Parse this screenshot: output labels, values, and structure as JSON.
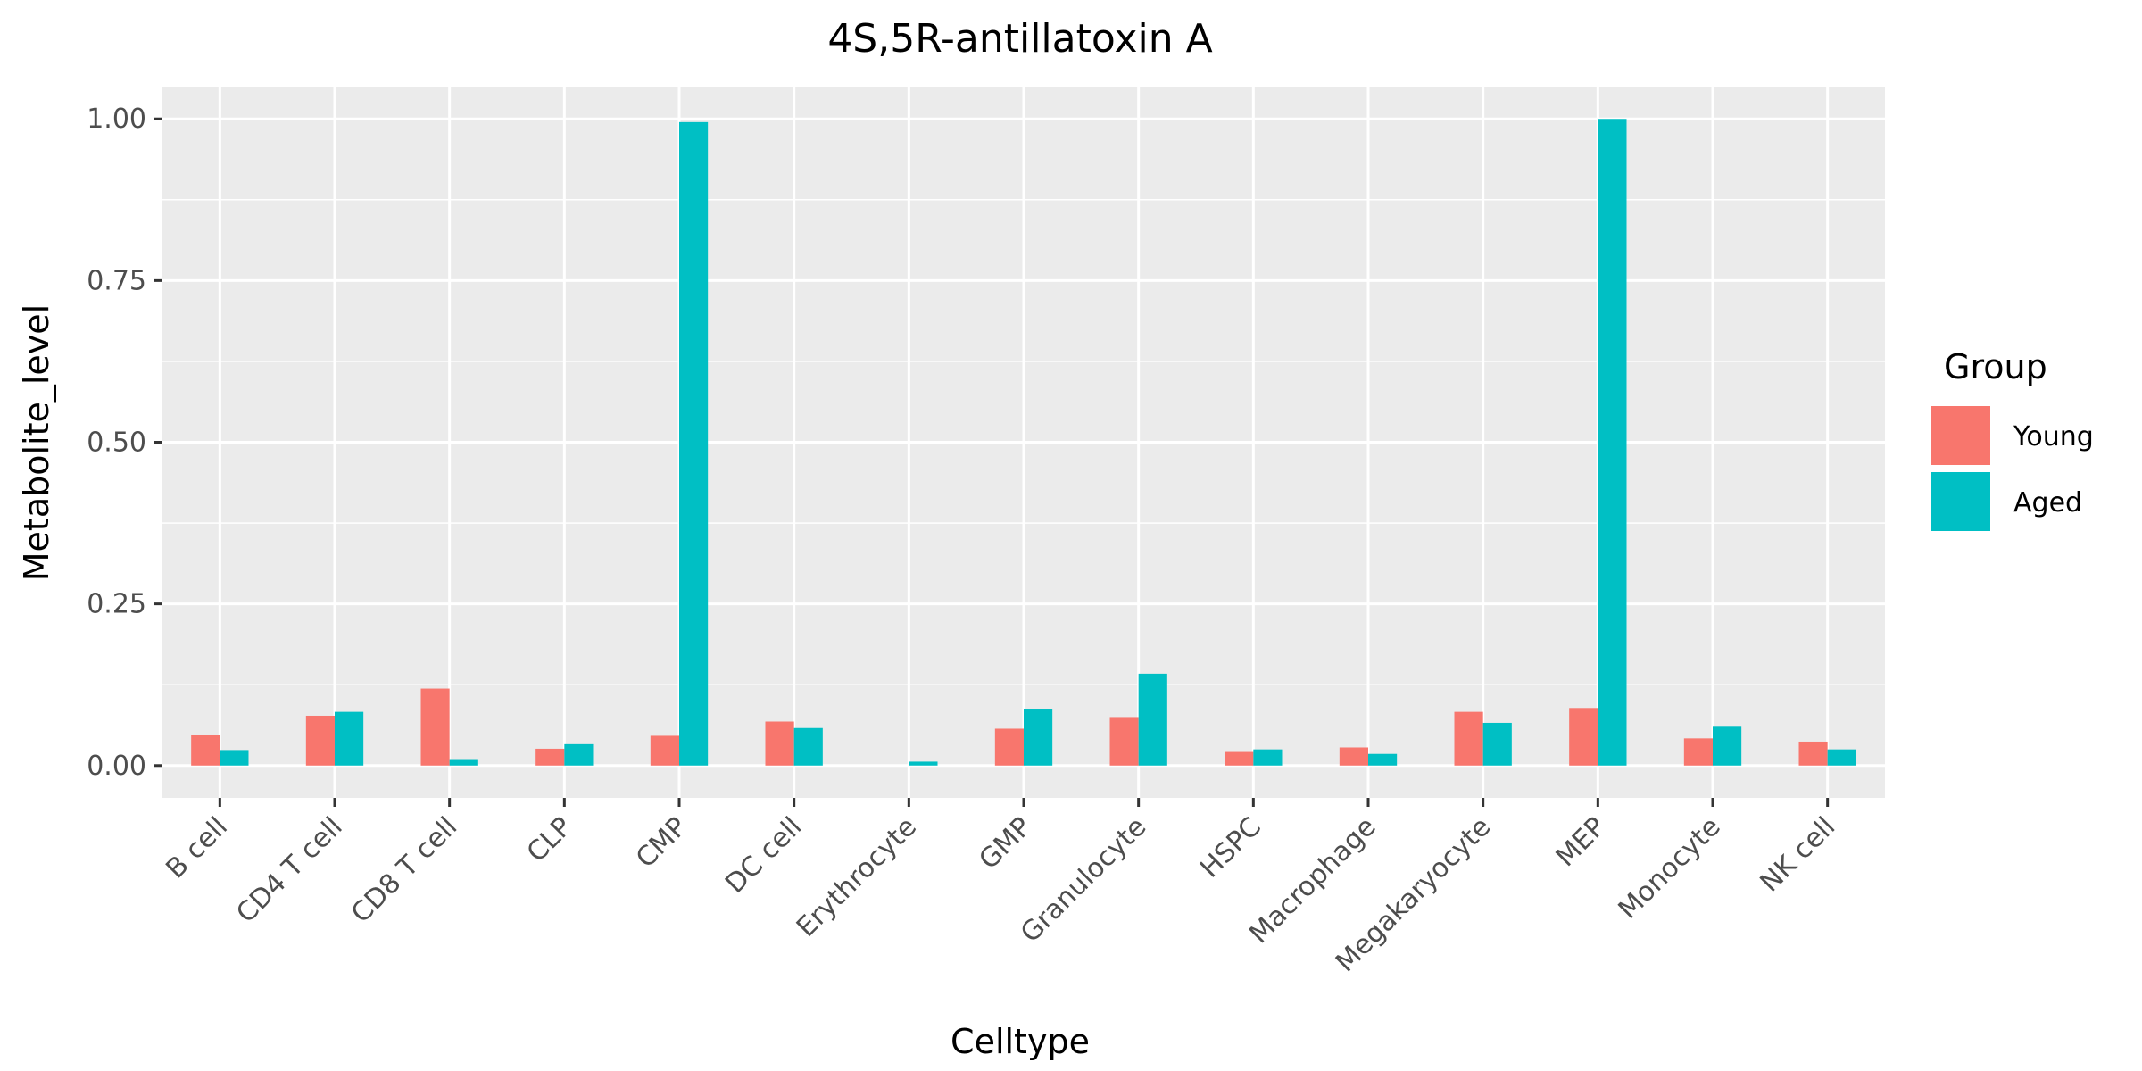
{
  "chart_data": {
    "type": "bar",
    "title": "4S,5R-antillatoxin A",
    "xlabel": "Celltype",
    "ylabel": "Metabolite_level",
    "categories": [
      "B cell",
      "CD4 T cell",
      "CD8 T cell",
      "CLP",
      "CMP",
      "DC cell",
      "Erythrocyte",
      "GMP",
      "Granulocyte",
      "HSPC",
      "Macrophage",
      "Megakaryocyte",
      "MEP",
      "Monocyte",
      "NK cell"
    ],
    "series": [
      {
        "name": "Young",
        "color": "#F8766D",
        "values": [
          0.048,
          0.077,
          0.119,
          0.026,
          0.046,
          0.068,
          0.0,
          0.057,
          0.075,
          0.021,
          0.028,
          0.083,
          0.089,
          0.042,
          0.037
        ]
      },
      {
        "name": "Aged",
        "color": "#00BFC4",
        "values": [
          0.024,
          0.083,
          0.01,
          0.033,
          0.995,
          0.058,
          0.006,
          0.088,
          0.142,
          0.025,
          0.018,
          0.066,
          1.0,
          0.06,
          0.025
        ]
      }
    ],
    "ylim": [
      -0.05,
      1.05
    ],
    "yticks": [
      0.0,
      0.25,
      0.5,
      0.75,
      1.0
    ],
    "ytick_labels": [
      "0.00",
      "0.25",
      "0.50",
      "0.75",
      "1.00"
    ],
    "grid": true,
    "legend": {
      "title": "Group",
      "position": "right"
    },
    "panel_background": "#EBEBEB",
    "grid_color": "#FFFFFF"
  }
}
